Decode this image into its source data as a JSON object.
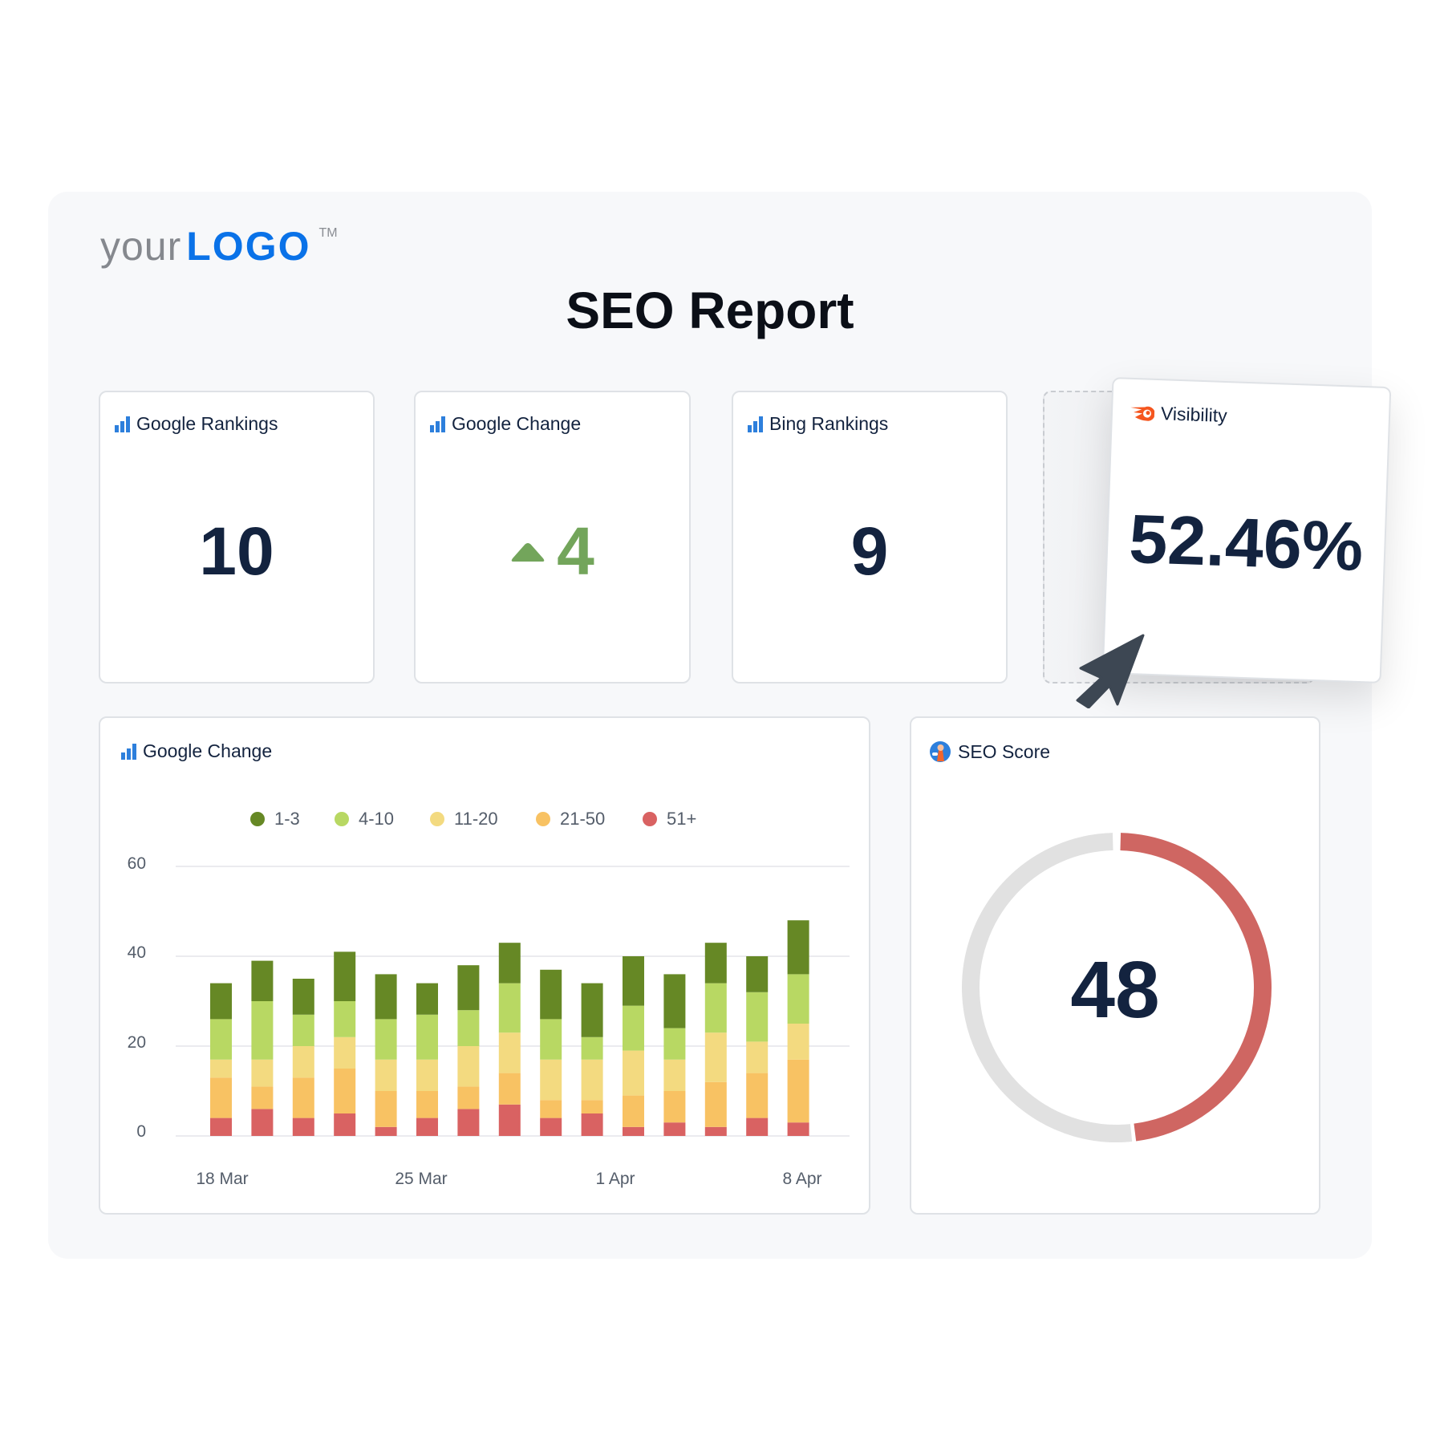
{
  "logo": {
    "prefix": "your",
    "brand": "LOGO",
    "tm": "TM"
  },
  "title": "SEO Report",
  "cards": {
    "google_rankings": {
      "title": "Google Rankings",
      "value": "10"
    },
    "google_change": {
      "title": "Google Change",
      "value": "4",
      "direction": "up"
    },
    "bing_rankings": {
      "title": "Bing Rankings",
      "value": "9"
    },
    "visibility": {
      "title": "Visibility",
      "value": "52.46%"
    }
  },
  "seo_score": {
    "title": "SEO Score",
    "value": "48",
    "fraction": 0.48
  },
  "colors": {
    "accent": "#0a72e8",
    "up": "#73a55b",
    "score_arc": "#cf6662",
    "track": "#e1e1e1"
  },
  "chart_data": {
    "type": "bar",
    "stacked": true,
    "title": "Google Change",
    "ylim": [
      0,
      60
    ],
    "yticks": [
      "0",
      "20",
      "40",
      "60"
    ],
    "xtick_labels": [
      "18 Mar",
      "25 Mar",
      "1 Apr",
      "8 Apr"
    ],
    "legend_placement": "top-center",
    "series": [
      {
        "name": "51+",
        "color": "#d96262",
        "values": [
          4,
          6,
          4,
          5,
          2,
          4,
          6,
          7,
          4,
          5,
          2,
          3,
          2,
          4,
          3
        ]
      },
      {
        "name": "21-50",
        "color": "#f8c263",
        "values": [
          9,
          5,
          9,
          10,
          8,
          6,
          5,
          7,
          4,
          3,
          7,
          7,
          10,
          10,
          14
        ]
      },
      {
        "name": "11-20",
        "color": "#f3da80",
        "values": [
          4,
          6,
          7,
          7,
          7,
          7,
          9,
          9,
          9,
          9,
          10,
          7,
          11,
          7,
          8
        ]
      },
      {
        "name": "4-10",
        "color": "#b8d863",
        "values": [
          9,
          13,
          7,
          8,
          9,
          10,
          8,
          11,
          9,
          5,
          10,
          7,
          11,
          11,
          11
        ]
      },
      {
        "name": "1-3",
        "color": "#668825",
        "values": [
          8,
          9,
          8,
          11,
          10,
          7,
          10,
          9,
          11,
          12,
          11,
          12,
          9,
          8,
          12
        ]
      }
    ],
    "legend": [
      "1-3",
      "4-10",
      "11-20",
      "21-50",
      "51+"
    ]
  }
}
